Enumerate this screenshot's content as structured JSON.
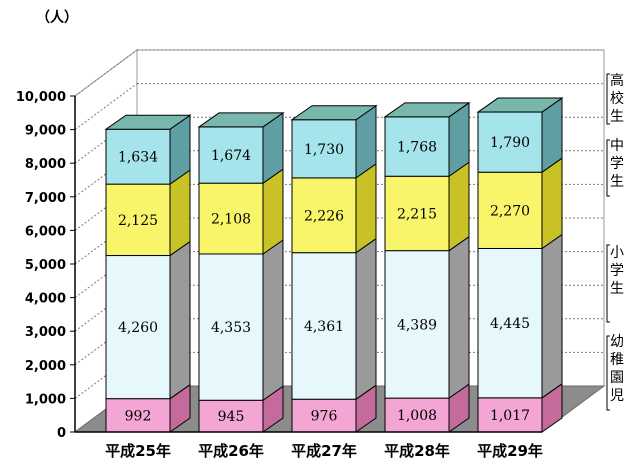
{
  "chart_data": {
    "type": "bar",
    "stacked": true,
    "three_d": true,
    "unit_label": "（人）",
    "categories": [
      "平成25年",
      "平成26年",
      "平成27年",
      "平成28年",
      "平成29年"
    ],
    "series": [
      {
        "name": "幼稚園児",
        "values": [
          992,
          945,
          976,
          1008,
          1017
        ],
        "labels": [
          "992",
          "945",
          "976",
          "1,008",
          "1,017"
        ],
        "color": "#f3a6d3",
        "dark": "#c46b9c",
        "top": "#e98fc0"
      },
      {
        "name": "小学生",
        "values": [
          4260,
          4353,
          4361,
          4389,
          4445
        ],
        "labels": [
          "4,260",
          "4,353",
          "4,361",
          "4,389",
          "4,445"
        ],
        "color": "#e6f8fb",
        "dark": "#9a9a9a",
        "top": "#c8e8ec"
      },
      {
        "name": "中学生",
        "values": [
          2125,
          2108,
          2226,
          2215,
          2270
        ],
        "labels": [
          "2,125",
          "2,108",
          "2,226",
          "2,215",
          "2,270"
        ],
        "color": "#f8f56b",
        "dark": "#c9c226",
        "top": "#f0ea55"
      },
      {
        "name": "高校生",
        "values": [
          1634,
          1674,
          1730,
          1768,
          1790
        ],
        "labels": [
          "1,634",
          "1,674",
          "1,730",
          "1,768",
          "1,790"
        ],
        "color": "#a4e4ea",
        "dark": "#5f9ea3",
        "top": "#78b7ad"
      }
    ],
    "yticks": [
      "0",
      "1,000",
      "2,000",
      "3,000",
      "4,000",
      "5,000",
      "6,000",
      "7,000",
      "8,000",
      "9,000",
      "10,000"
    ],
    "ylim": [
      0,
      10000
    ],
    "grid": true,
    "legend": "right"
  }
}
